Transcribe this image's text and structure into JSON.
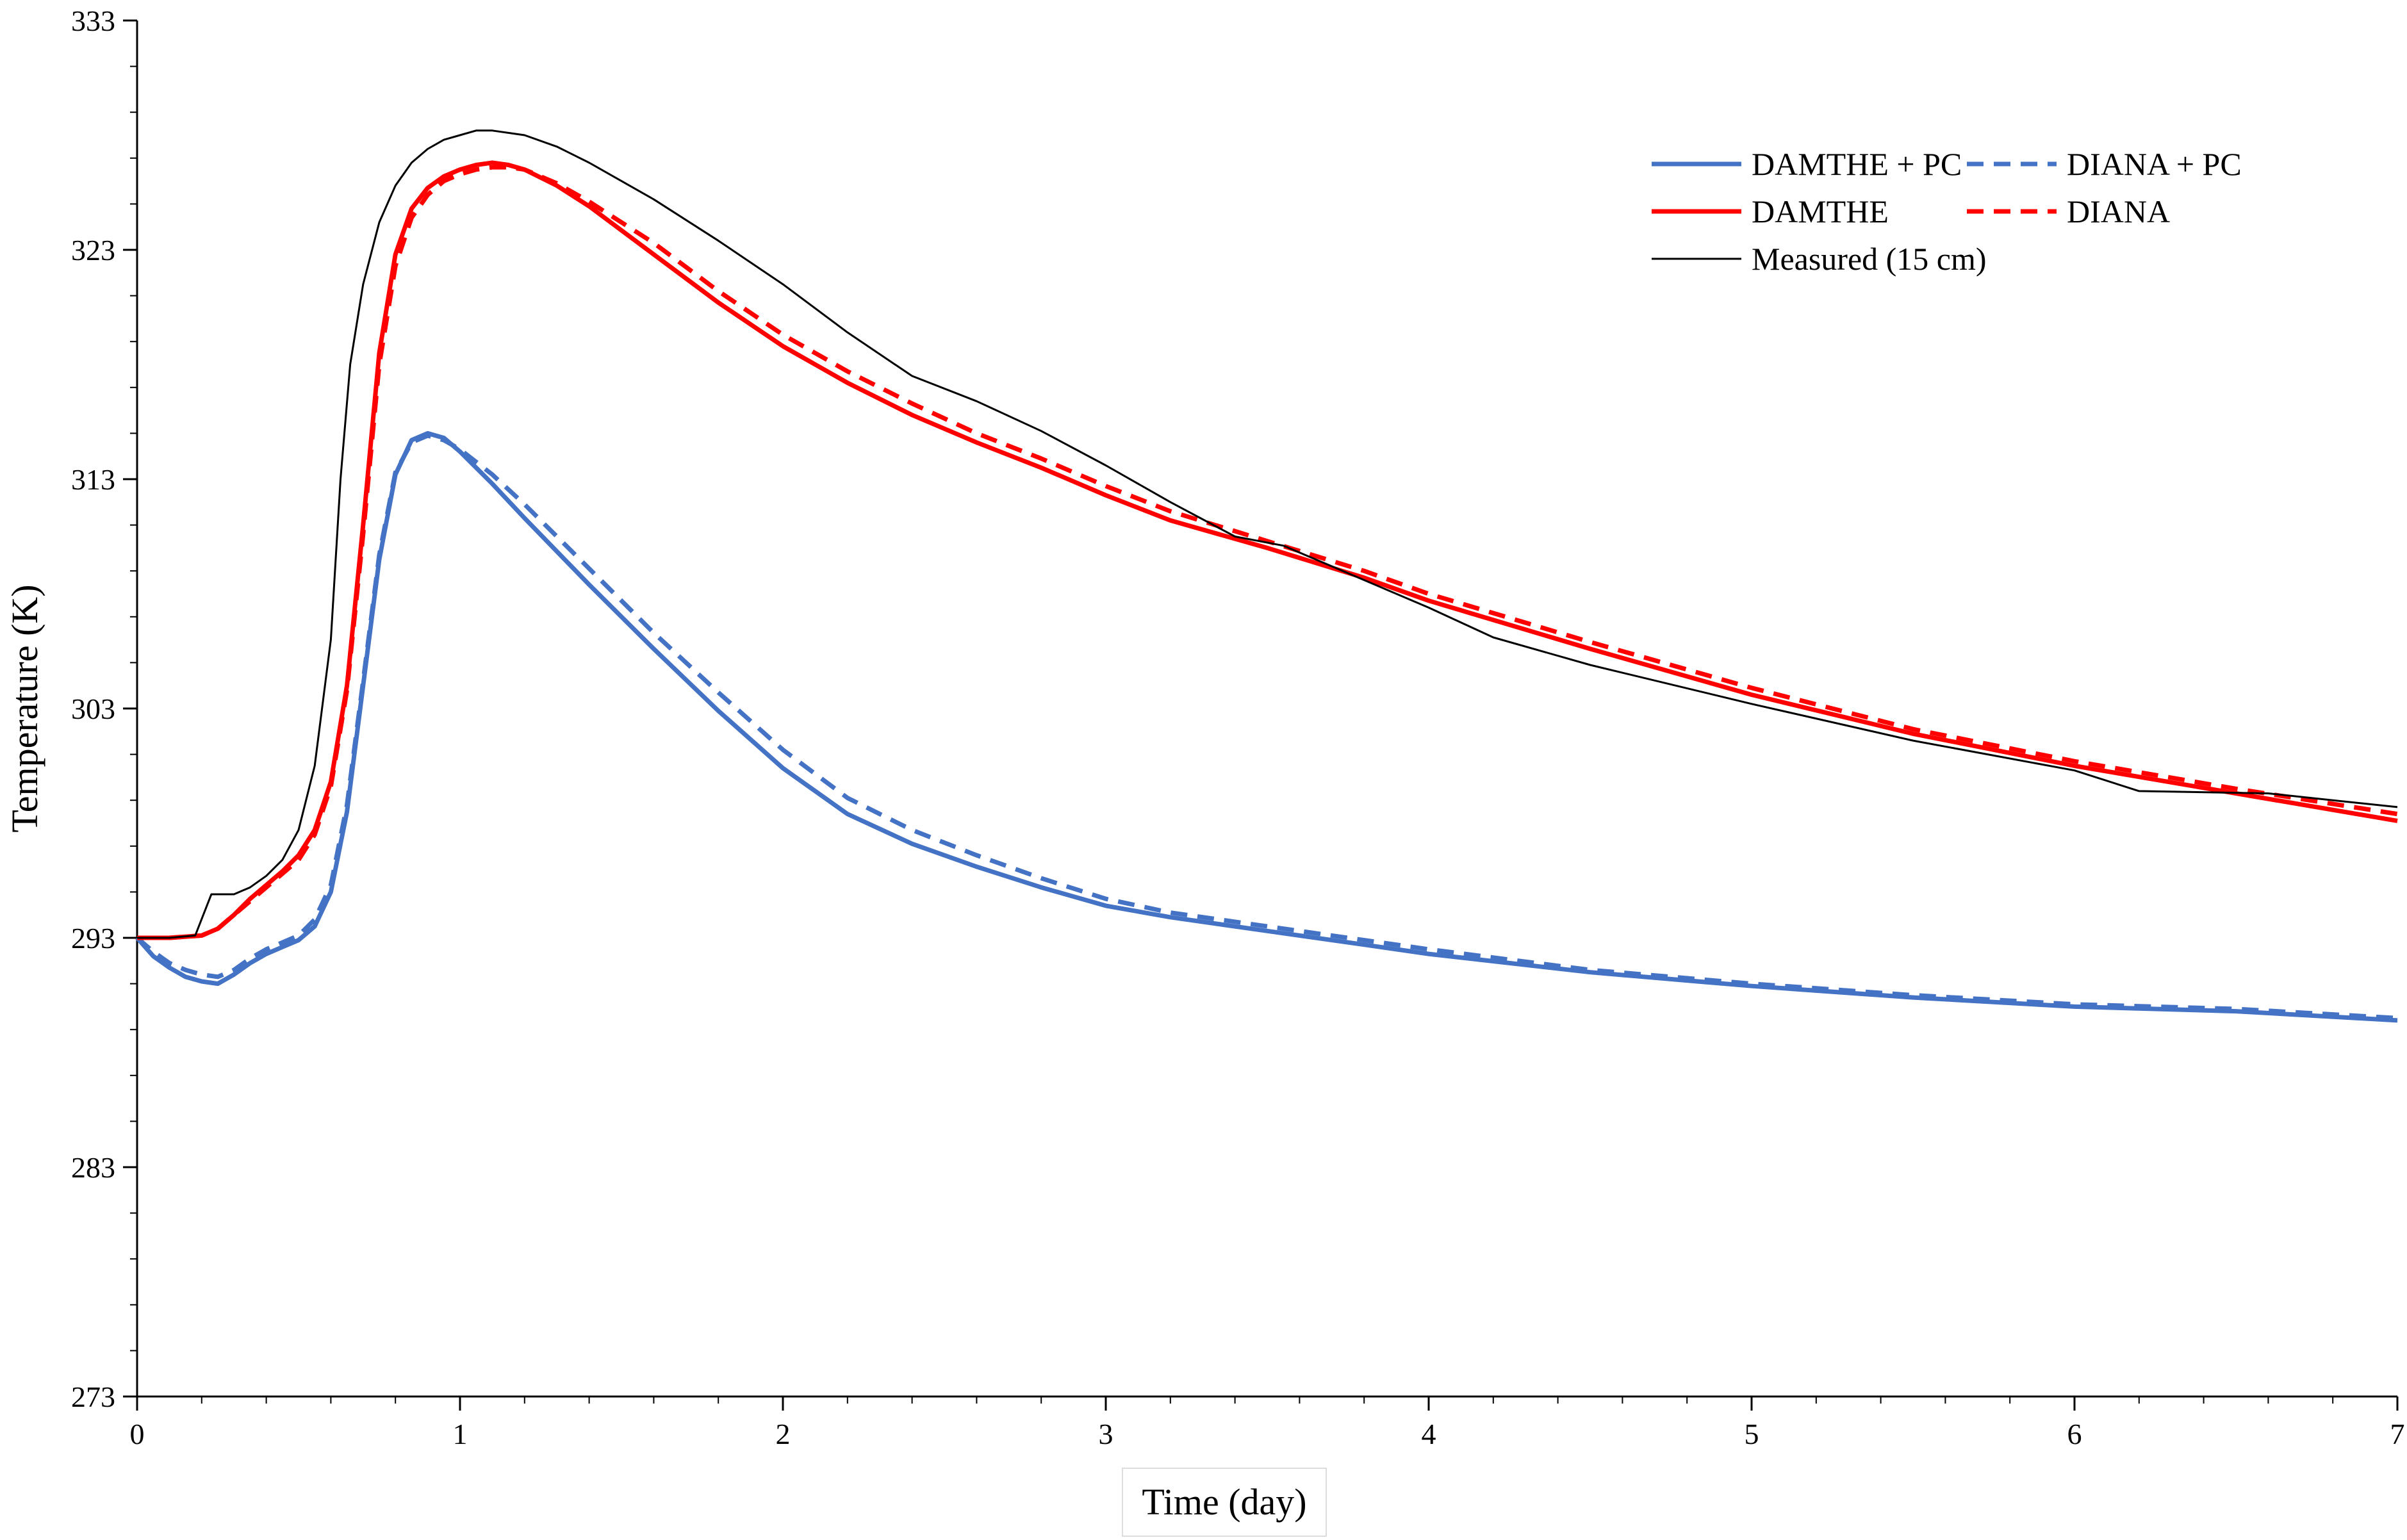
{
  "chart_data": {
    "type": "line",
    "title": "",
    "xlabel": "Time (day)",
    "ylabel": "Temperature (K)",
    "xlim": [
      0,
      7
    ],
    "ylim": [
      273,
      333
    ],
    "x_ticks": [
      0,
      1,
      2,
      3,
      4,
      5,
      6,
      7
    ],
    "y_ticks": [
      273,
      283,
      293,
      303,
      313,
      323,
      333
    ],
    "grid": false,
    "legend_position": "top-right",
    "series": [
      {
        "name": "DAMTHE + PC",
        "color": "#4472C4",
        "dash": "solid",
        "x": [
          0,
          0.05,
          0.1,
          0.15,
          0.2,
          0.25,
          0.3,
          0.35,
          0.4,
          0.45,
          0.5,
          0.55,
          0.6,
          0.65,
          0.7,
          0.75,
          0.8,
          0.85,
          0.9,
          0.95,
          1.0,
          1.1,
          1.2,
          1.4,
          1.6,
          1.8,
          2.0,
          2.2,
          2.4,
          2.6,
          2.8,
          3.0,
          3.2,
          3.5,
          3.8,
          4.0,
          4.5,
          5.0,
          5.5,
          6.0,
          6.5,
          7.0
        ],
        "y": [
          293.0,
          292.2,
          291.7,
          291.3,
          291.1,
          291.0,
          291.4,
          291.9,
          292.3,
          292.6,
          292.9,
          293.5,
          295.0,
          298.5,
          304.0,
          309.5,
          313.2,
          314.7,
          315.0,
          314.8,
          314.2,
          312.8,
          311.3,
          308.4,
          305.6,
          302.9,
          300.4,
          298.4,
          297.1,
          296.1,
          295.2,
          294.4,
          293.9,
          293.3,
          292.7,
          292.3,
          291.5,
          290.9,
          290.4,
          290.0,
          289.8,
          289.4
        ]
      },
      {
        "name": "DIANA + PC",
        "color": "#4472C4",
        "dash": "dashed",
        "x": [
          0,
          0.05,
          0.1,
          0.15,
          0.2,
          0.25,
          0.3,
          0.35,
          0.4,
          0.45,
          0.5,
          0.55,
          0.6,
          0.65,
          0.7,
          0.75,
          0.8,
          0.85,
          0.9,
          0.95,
          1.0,
          1.1,
          1.2,
          1.4,
          1.6,
          1.8,
          2.0,
          2.2,
          2.4,
          2.6,
          2.8,
          3.0,
          3.2,
          3.5,
          3.8,
          4.0,
          4.5,
          5.0,
          5.5,
          6.0,
          6.5,
          7.0
        ],
        "y": [
          293.0,
          292.4,
          291.9,
          291.6,
          291.4,
          291.3,
          291.6,
          292.1,
          292.5,
          292.8,
          293.1,
          293.8,
          295.3,
          298.8,
          304.2,
          309.7,
          313.3,
          314.6,
          314.9,
          314.7,
          314.3,
          313.2,
          311.9,
          309.1,
          306.3,
          303.7,
          301.2,
          299.1,
          297.7,
          296.6,
          295.6,
          294.7,
          294.1,
          293.5,
          292.9,
          292.5,
          291.6,
          291.0,
          290.5,
          290.1,
          289.9,
          289.5
        ]
      },
      {
        "name": "DAMTHE",
        "color": "#FF0000",
        "dash": "solid",
        "x": [
          0,
          0.1,
          0.2,
          0.25,
          0.3,
          0.35,
          0.4,
          0.45,
          0.5,
          0.55,
          0.6,
          0.65,
          0.7,
          0.75,
          0.8,
          0.85,
          0.9,
          0.95,
          1.0,
          1.05,
          1.1,
          1.15,
          1.2,
          1.3,
          1.4,
          1.6,
          1.8,
          2.0,
          2.2,
          2.4,
          2.6,
          2.8,
          3.0,
          3.2,
          3.5,
          3.8,
          4.0,
          4.5,
          5.0,
          5.5,
          6.0,
          6.5,
          7.0
        ],
        "y": [
          293.0,
          293.0,
          293.1,
          293.4,
          294.0,
          294.7,
          295.3,
          295.9,
          296.6,
          297.7,
          299.8,
          304.0,
          311.0,
          318.5,
          322.8,
          324.8,
          325.7,
          326.2,
          326.5,
          326.7,
          326.8,
          326.7,
          326.5,
          325.8,
          324.9,
          322.8,
          320.7,
          318.8,
          317.2,
          315.8,
          314.6,
          313.5,
          312.3,
          311.2,
          310.0,
          308.7,
          307.7,
          305.6,
          303.6,
          301.9,
          300.5,
          299.3,
          298.1
        ]
      },
      {
        "name": "DIANA",
        "color": "#FF0000",
        "dash": "dashed",
        "x": [
          0,
          0.1,
          0.2,
          0.25,
          0.3,
          0.35,
          0.4,
          0.45,
          0.5,
          0.55,
          0.6,
          0.65,
          0.7,
          0.75,
          0.8,
          0.85,
          0.9,
          0.95,
          1.0,
          1.05,
          1.1,
          1.15,
          1.2,
          1.3,
          1.4,
          1.6,
          1.8,
          2.0,
          2.2,
          2.4,
          2.6,
          2.8,
          3.0,
          3.2,
          3.5,
          3.8,
          4.0,
          4.5,
          5.0,
          5.5,
          6.0,
          6.5,
          7.0
        ],
        "y": [
          293.0,
          293.0,
          293.1,
          293.4,
          294.0,
          294.6,
          295.2,
          295.8,
          296.4,
          297.5,
          299.6,
          303.8,
          310.6,
          318.0,
          322.3,
          324.4,
          325.4,
          326.0,
          326.3,
          326.5,
          326.6,
          326.6,
          326.5,
          325.9,
          325.1,
          323.3,
          321.2,
          319.3,
          317.7,
          316.3,
          315.0,
          313.9,
          312.7,
          311.6,
          310.3,
          309.0,
          308.0,
          305.9,
          303.9,
          302.1,
          300.7,
          299.5,
          298.4
        ]
      },
      {
        "name": "Measured (15 cm)",
        "color": "#000000",
        "dash": "thin",
        "x": [
          0,
          0.1,
          0.18,
          0.23,
          0.3,
          0.35,
          0.4,
          0.45,
          0.5,
          0.55,
          0.6,
          0.63,
          0.66,
          0.7,
          0.75,
          0.8,
          0.85,
          0.9,
          0.95,
          1.0,
          1.05,
          1.1,
          1.2,
          1.3,
          1.4,
          1.6,
          1.8,
          2.0,
          2.2,
          2.4,
          2.6,
          2.8,
          3.0,
          3.2,
          3.4,
          3.55,
          3.8,
          4.0,
          4.2,
          4.5,
          5.0,
          5.5,
          6.0,
          6.2,
          6.6,
          6.8,
          7.0
        ],
        "y": [
          293.0,
          293.0,
          293.1,
          294.9,
          294.9,
          295.2,
          295.7,
          296.4,
          297.7,
          300.5,
          306.0,
          313.0,
          318.0,
          321.5,
          324.2,
          325.8,
          326.8,
          327.4,
          327.8,
          328.0,
          328.2,
          328.2,
          328.0,
          327.5,
          326.8,
          325.2,
          323.4,
          321.5,
          319.4,
          317.5,
          316.4,
          315.1,
          313.6,
          312.0,
          310.5,
          310.1,
          308.6,
          307.4,
          306.1,
          304.9,
          303.2,
          301.6,
          300.3,
          299.4,
          299.3,
          299.0,
          298.7
        ]
      }
    ]
  }
}
